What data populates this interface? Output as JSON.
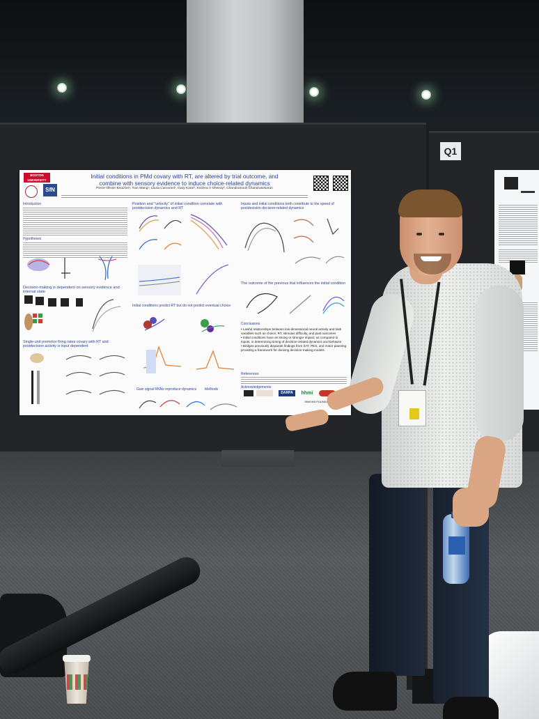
{
  "scene": {
    "booth_label": "Q1",
    "colors": {
      "board": "#232528",
      "floor": "#5a5d5f",
      "shirt": "#e6e8e6",
      "jeans": "#1b2433",
      "poster_title": "#2a3f9b"
    }
  },
  "poster": {
    "logos": {
      "bu": "BOSTON UNIVERSITY",
      "sn": "SfN",
      "hhmi": "hhmi",
      "darpa": "DARPA",
      "simons": "SIMONS FOUNDATION"
    },
    "title_line1": "Initial conditions in PMd covary with RT, are altered by trial outcome, and",
    "title_line2": "combine with sensory evidence to induce choice-related dynamics",
    "authors": "Pierre-Olivier Boucher¹, Tian Wang¹, Laura Carceroni¹, Gary Kane², Krishna V Shenoy³, Chandramouli Chandrasekaran",
    "sections": {
      "introduction": "Introduction",
      "hypotheses": "Hypotheses",
      "decision_making": "Decision-making is dependent on sensory evidence and internal state",
      "firing_rates": "Single-unit premotor firing rates covary with RT and postdecision activity is input dependent",
      "position_velocity": "Position and \"velocity\" of initial condition correlate with postdecision dynamics and RT",
      "predict_rt": "Initial conditions predict RT but do not predict eventual choice",
      "gain_signal": "Gain signal RNNs reproduce dynamics",
      "methods": "Methods",
      "inputs": "Inputs and initial conditions both contribute to the speed of postdecision decision-related dynamics",
      "outcome": "The outcome of the previous trial influences the initial condition",
      "conclusions": "Conclusions",
      "references": "References",
      "acknowledgements": "Acknowledgements"
    },
    "conclusions": [
      "• Lawful relationships between low-dimensional neural activity and task variables such as choice, RT, stimulus difficulty, and past outcomes",
      "• Initial conditions have as strong or stronger impact, as compared to inputs, in determining timing of decision-related dynamics and behavior",
      "• Bridges previously disparate findings from SAT, PES, and motor planning providing a framework for deriving decision-making models"
    ]
  }
}
